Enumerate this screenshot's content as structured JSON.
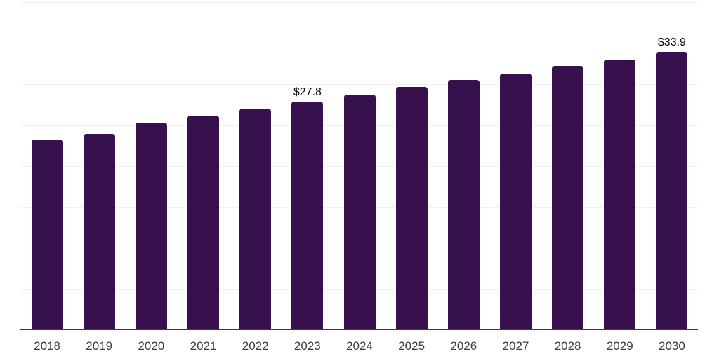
{
  "chart_data": {
    "type": "bar",
    "categories": [
      "2018",
      "2019",
      "2020",
      "2021",
      "2022",
      "2023",
      "2024",
      "2025",
      "2026",
      "2027",
      "2028",
      "2029",
      "2030"
    ],
    "values": [
      23.2,
      23.9,
      25.3,
      26.1,
      27.0,
      27.8,
      28.7,
      29.6,
      30.5,
      31.3,
      32.2,
      33.0,
      33.9
    ],
    "data_labels": [
      {
        "category": "2023",
        "text": "$27.8"
      },
      {
        "category": "2030",
        "text": "$33.9"
      }
    ],
    "ylim": [
      0,
      40
    ],
    "grid_step": 5,
    "grid": true,
    "legend": false,
    "y_axis_labels_visible": false,
    "colors": {
      "bar": "#36114e",
      "axis": "#3c3c3c",
      "gridline": "#f0f0f0",
      "tick_label": "#3d3d3d",
      "data_label": "#0a0a0a",
      "background": "#ffffff"
    }
  }
}
